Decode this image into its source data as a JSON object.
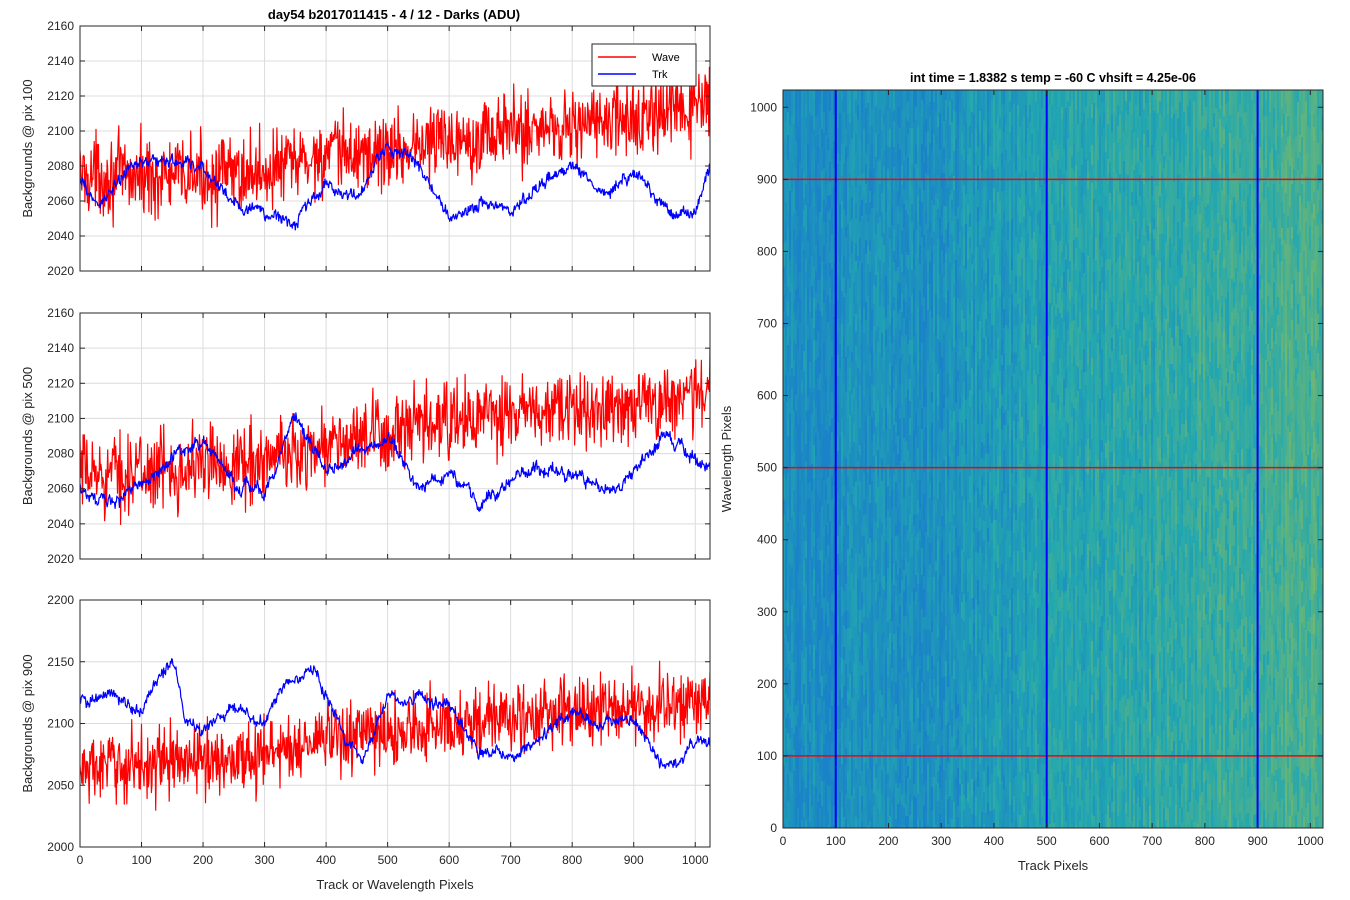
{
  "figure": {
    "title": "day54 b2017011415 - 4 / 12 - Darks (ADU)",
    "image_title": "int time = 1.8382 s    temp = -60 C    vhsift = 4.25e-06"
  },
  "colors": {
    "wave": "#ff0000",
    "trk": "#0000ff",
    "axis": "#262626",
    "grid": "#dcdcdc",
    "img_low": "#1a82c8",
    "img_mid": "#22a7b0",
    "img_high": "#8cbd5a"
  },
  "legend": {
    "placement": "top-right",
    "items": [
      {
        "label": "Wave",
        "color": "#ff0000"
      },
      {
        "label": "Trk",
        "color": "#0000ff"
      }
    ]
  },
  "chart_data": [
    {
      "type": "line",
      "ylabel": "Backgrounds @ pix 100",
      "xlabel": "",
      "xlim": [
        0,
        1024
      ],
      "ylim": [
        2020,
        2160
      ],
      "xticks": [
        0,
        100,
        200,
        300,
        400,
        500,
        600,
        700,
        800,
        900,
        1000
      ],
      "yticks": [
        2020,
        2040,
        2060,
        2080,
        2100,
        2120,
        2140,
        2160
      ],
      "grid": true,
      "legend": "top-right",
      "series": [
        {
          "name": "Wave",
          "color": "#ff0000",
          "noise": 11,
          "trend_x": [
            0,
            100,
            200,
            300,
            400,
            500,
            600,
            700,
            800,
            900,
            1024
          ],
          "trend_y": [
            2075,
            2074,
            2074,
            2077,
            2086,
            2088,
            2096,
            2100,
            2104,
            2106,
            2115
          ]
        },
        {
          "name": "Trk",
          "color": "#0000ff",
          "noise": 3,
          "trend_x": [
            0,
            30,
            100,
            150,
            200,
            250,
            300,
            350,
            400,
            450,
            500,
            550,
            600,
            650,
            700,
            750,
            800,
            850,
            900,
            950,
            1000,
            1024
          ],
          "trend_y": [
            2070,
            2058,
            2084,
            2082,
            2078,
            2060,
            2052,
            2048,
            2070,
            2060,
            2092,
            2080,
            2050,
            2060,
            2055,
            2068,
            2082,
            2065,
            2078,
            2058,
            2052,
            2080
          ]
        }
      ]
    },
    {
      "type": "line",
      "ylabel": "Backgrounds @ pix 500",
      "xlabel": "",
      "xlim": [
        0,
        1024
      ],
      "ylim": [
        2020,
        2160
      ],
      "xticks": [
        0,
        100,
        200,
        300,
        400,
        500,
        600,
        700,
        800,
        900,
        1000
      ],
      "yticks": [
        2020,
        2040,
        2060,
        2080,
        2100,
        2120,
        2140,
        2160
      ],
      "grid": true,
      "series": [
        {
          "name": "Wave",
          "color": "#ff0000",
          "noise": 11,
          "trend_x": [
            0,
            100,
            200,
            300,
            400,
            500,
            600,
            700,
            800,
            900,
            1024
          ],
          "trend_y": [
            2068,
            2070,
            2074,
            2076,
            2085,
            2090,
            2098,
            2102,
            2104,
            2108,
            2115
          ]
        },
        {
          "name": "Trk",
          "color": "#0000ff",
          "noise": 3,
          "trend_x": [
            0,
            40,
            100,
            150,
            200,
            250,
            300,
            350,
            400,
            450,
            500,
            550,
            600,
            650,
            700,
            750,
            800,
            850,
            900,
            950,
            1000,
            1024
          ],
          "trend_y": [
            2062,
            2050,
            2062,
            2078,
            2088,
            2064,
            2058,
            2100,
            2070,
            2080,
            2090,
            2060,
            2070,
            2052,
            2064,
            2072,
            2070,
            2060,
            2070,
            2090,
            2080,
            2070
          ]
        }
      ]
    },
    {
      "type": "line",
      "ylabel": "Backgrounds @ pix 900",
      "xlabel": "Track or Wavelength Pixels",
      "xlim": [
        0,
        1024
      ],
      "ylim": [
        2000,
        2200
      ],
      "xticks": [
        0,
        100,
        200,
        300,
        400,
        500,
        600,
        700,
        800,
        900,
        1000
      ],
      "yticks": [
        2000,
        2050,
        2100,
        2150,
        2200
      ],
      "grid": true,
      "series": [
        {
          "name": "Wave",
          "color": "#ff0000",
          "noise": 14,
          "trend_x": [
            0,
            100,
            200,
            300,
            400,
            500,
            600,
            700,
            800,
            900,
            1024
          ],
          "trend_y": [
            2062,
            2068,
            2070,
            2075,
            2088,
            2092,
            2100,
            2104,
            2110,
            2112,
            2118
          ]
        },
        {
          "name": "Trk",
          "color": "#0000ff",
          "noise": 4,
          "trend_x": [
            0,
            50,
            100,
            150,
            170,
            200,
            250,
            300,
            330,
            380,
            430,
            460,
            500,
            550,
            600,
            650,
            700,
            750,
            800,
            850,
            900,
            950,
            1000,
            1024
          ],
          "trend_y": [
            2118,
            2122,
            2110,
            2155,
            2102,
            2095,
            2118,
            2100,
            2130,
            2145,
            2090,
            2070,
            2122,
            2118,
            2112,
            2080,
            2070,
            2090,
            2110,
            2100,
            2105,
            2066,
            2080,
            2086
          ]
        }
      ]
    },
    {
      "type": "heatmap",
      "title": "int time = 1.8382 s    temp = -60 C    vhsift = 4.25e-06",
      "xlabel": "Track Pixels",
      "ylabel": "Wavelength Pixels",
      "xlim": [
        0,
        1024
      ],
      "ylim": [
        0,
        1024
      ],
      "xticks": [
        0,
        100,
        200,
        300,
        400,
        500,
        600,
        700,
        800,
        900,
        1000
      ],
      "yticks": [
        0,
        100,
        200,
        300,
        400,
        500,
        600,
        700,
        800,
        900,
        1000
      ],
      "value_gradient_x": [
        0,
        300,
        550,
        850,
        1024
      ],
      "value_level": [
        0.12,
        0.18,
        0.38,
        0.55,
        0.62
      ],
      "vertical_lines": {
        "x": [
          100,
          500,
          900
        ],
        "color": "#0000ff"
      },
      "horizontal_lines": {
        "y": [
          100,
          500,
          900
        ],
        "color": "#ff0000"
      }
    }
  ]
}
